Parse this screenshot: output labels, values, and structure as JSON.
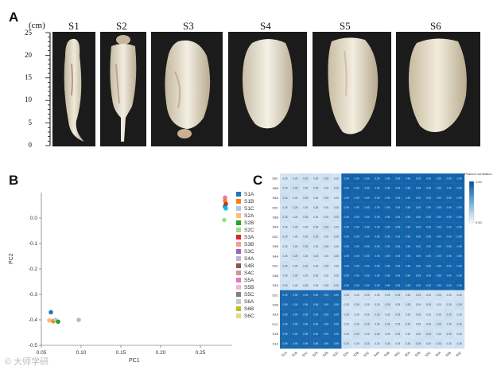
{
  "panels": {
    "a": "A",
    "b": "B",
    "c": "C"
  },
  "panel_a": {
    "unit_label": "(cm)",
    "ruler_ticks": [
      "25",
      "20",
      "15",
      "10",
      "5",
      "0"
    ],
    "stages": [
      "S1",
      "S2",
      "S3",
      "S4",
      "S5",
      "S6"
    ]
  },
  "chart_data": [
    {
      "type": "scatter",
      "xlabel": "PC1",
      "ylabel": "PC2",
      "xlim": [
        0.05,
        0.29
      ],
      "ylim": [
        -0.5,
        0.1
      ],
      "x_ticks": [
        "0.05",
        "0.10",
        "0.15",
        "0.20",
        "0.25"
      ],
      "y_ticks": [
        "0.0",
        "-0.1",
        "-0.2",
        "-0.3",
        "-0.4",
        "-0.5"
      ],
      "legend": [
        "S1A",
        "S1B",
        "S1C",
        "S2A",
        "S2B",
        "S2C",
        "S3A",
        "S3B",
        "S3C",
        "S4A",
        "S4B",
        "S4C",
        "S5A",
        "S5B",
        "S5C",
        "S6A",
        "S6B",
        "S6C"
      ],
      "legend_colors": [
        "#1f77b4",
        "#ff7f0e",
        "#aec7e8",
        "#ffbb78",
        "#2ca02c",
        "#98df8a",
        "#d62728",
        "#ff9896",
        "#9467bd",
        "#c5b0d5",
        "#8c564b",
        "#c49c94",
        "#e377c2",
        "#f7b6d2",
        "#7f7f7f",
        "#c7c7c7",
        "#bcbd22",
        "#dbdb8d"
      ],
      "points": [
        {
          "label": "S1A",
          "x": 0.062,
          "y": -0.37,
          "color": "#1f77b4"
        },
        {
          "label": "S1B",
          "x": 0.065,
          "y": -0.405,
          "color": "#ff7f0e"
        },
        {
          "label": "S1C",
          "x": 0.068,
          "y": -0.4,
          "color": "#aec7e8"
        },
        {
          "label": "S2A",
          "x": 0.06,
          "y": -0.402,
          "color": "#ffbb78"
        },
        {
          "label": "S2B",
          "x": 0.071,
          "y": -0.407,
          "color": "#2ca02c"
        },
        {
          "label": "S2C",
          "x": 0.097,
          "y": -0.4,
          "color": "#c5b0d5"
        },
        {
          "label": "S3A",
          "x": 0.281,
          "y": 0.08,
          "color": "#e377c2"
        },
        {
          "label": "S3B",
          "x": 0.281,
          "y": 0.068,
          "color": "#ff7f0e"
        },
        {
          "label": "S3C",
          "x": 0.282,
          "y": 0.055,
          "color": "#d62728"
        },
        {
          "label": "S4A",
          "x": 0.281,
          "y": 0.045,
          "color": "#1f77b4"
        },
        {
          "label": "S4B",
          "x": 0.282,
          "y": 0.038,
          "color": "#17becf"
        },
        {
          "label": "S4C",
          "x": 0.28,
          "y": -0.008,
          "color": "#98df8a"
        }
      ]
    },
    {
      "type": "heatmap",
      "title": "Pearson correlation",
      "colorbar_ticks": [
        "1.00",
        "0.00"
      ],
      "row_labels": [
        "S6C",
        "S6B",
        "S6A",
        "S5C",
        "S5B",
        "S5A",
        "S4C",
        "S4B",
        "S4A",
        "S3C",
        "S3B",
        "S3A",
        "S2C",
        "S2B",
        "S2A",
        "S1C",
        "S1B",
        "S1A"
      ],
      "col_labels": [
        "S1A",
        "S1B",
        "S1C",
        "S2A",
        "S2B",
        "S2C",
        "S3A",
        "S3B",
        "S3C",
        "S4A",
        "S4B",
        "S4C",
        "S5A",
        "S5B",
        "S5C",
        "S6A",
        "S6B",
        "S6C"
      ],
      "block_values": [
        [
          0.95,
          0.245
        ],
        [
          0.245,
          0.98
        ]
      ],
      "cell_text_high": "0.99",
      "cell_text_low": "0.25"
    }
  ],
  "watermark": "© 大师学研"
}
